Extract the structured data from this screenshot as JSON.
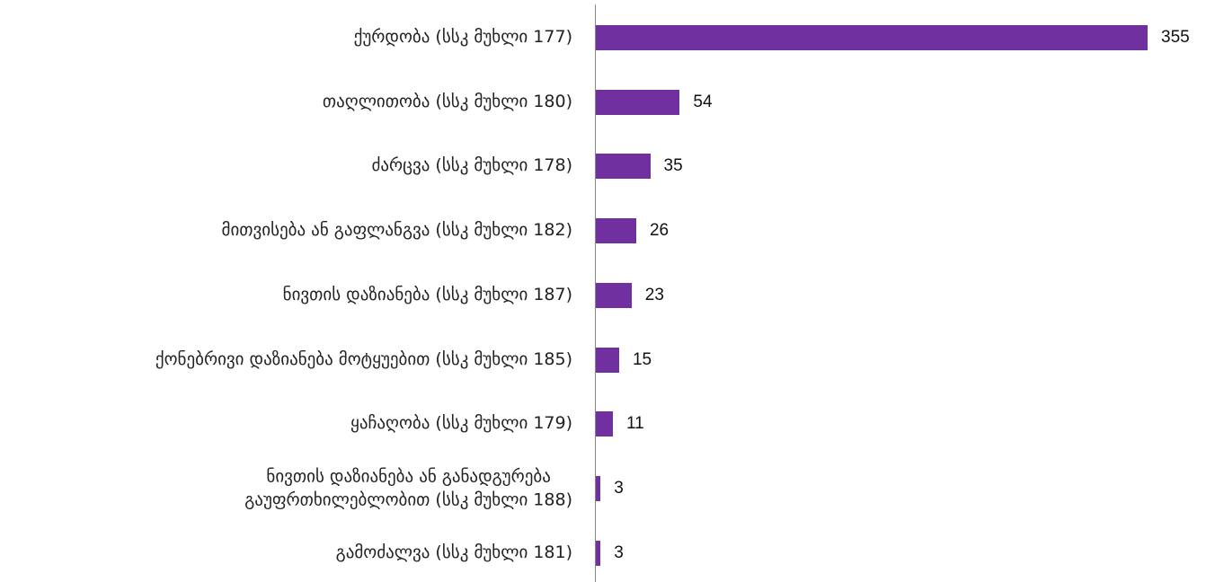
{
  "chart_data": {
    "type": "bar",
    "orientation": "horizontal",
    "color": "#7030a0",
    "categories": [
      "ქურდობა (სსკ მუხლი 177)",
      "თაღლითობა (სსკ მუხლი 180)",
      "ძარცვა (სსკ მუხლი 178)",
      "მითვისება ან გაფლანგვა (სსკ მუხლი 182)",
      "ნივთის დაზიანება (სსკ მუხლი 187)",
      "ქონებრივი დაზიანება მოტყუებით (სსკ მუხლი 185)",
      "ყაჩაღობა (სსკ მუხლი 179)",
      "ნივთის დაზიანება ან განადგურება\nგაუფრთხილებლობით  (სსკ  მუხლი 188)",
      "გამოძალვა (სსკ მუხლი 181)"
    ],
    "values": [
      355,
      54,
      35,
      26,
      23,
      15,
      11,
      3,
      3
    ]
  }
}
